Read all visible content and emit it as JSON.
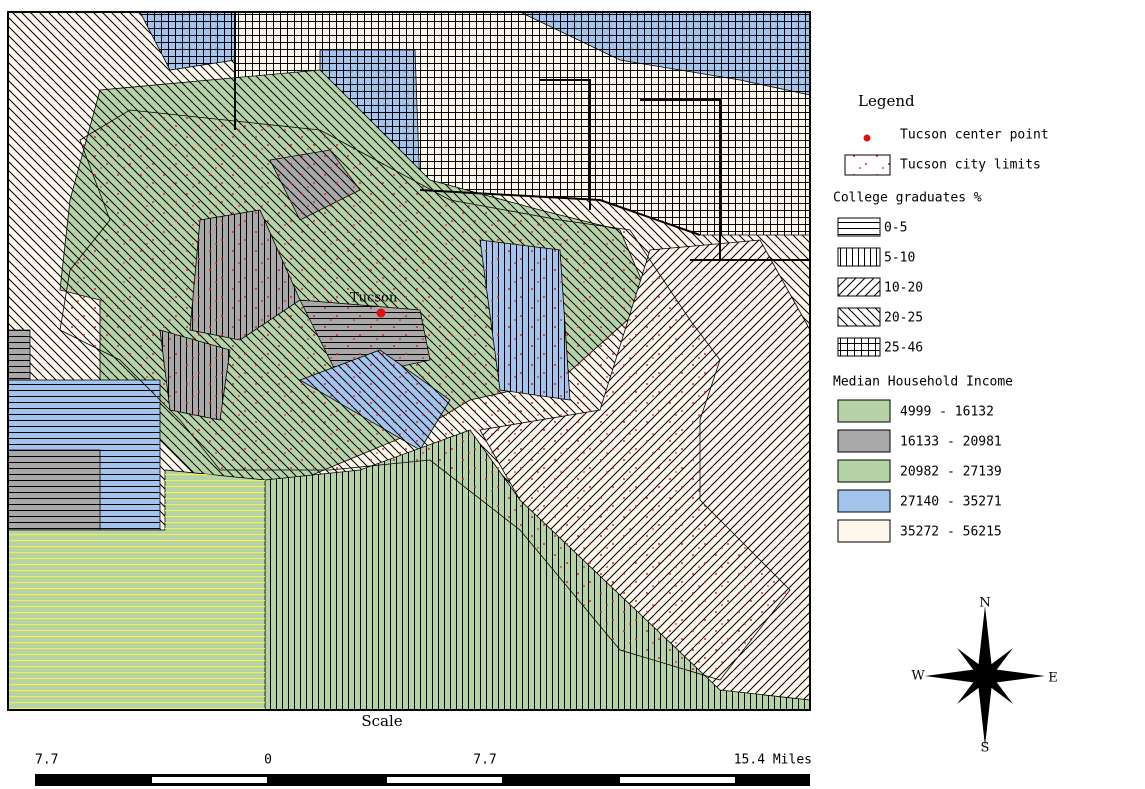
{
  "map": {
    "place_label": "Tucson"
  },
  "legend": {
    "title": "Legend",
    "center_point": "Tucson center point",
    "city_limits": "Tucson city limits",
    "college": {
      "title": "College graduates %",
      "classes": [
        "0-5",
        "5-10",
        "10-20",
        "20-25",
        "25-46"
      ]
    },
    "income": {
      "title": "Median Household Income",
      "classes": [
        {
          "label": "4999 - 16132",
          "color": "#b5d3a6"
        },
        {
          "label": "16133 - 20981",
          "color": "#a9a9a9"
        },
        {
          "label": "20982 - 27139",
          "color": "#b5d3a6"
        },
        {
          "label": "27140 - 35271",
          "color": "#a3c4ec"
        },
        {
          "label": "35272 - 56215",
          "color": "#fdf7ec"
        }
      ]
    }
  },
  "scale": {
    "title": "Scale",
    "labels": [
      "7.7",
      "0",
      "7.7",
      "15.4 Miles"
    ]
  },
  "compass": {
    "n": "N",
    "s": "S",
    "e": "E",
    "w": "W"
  }
}
